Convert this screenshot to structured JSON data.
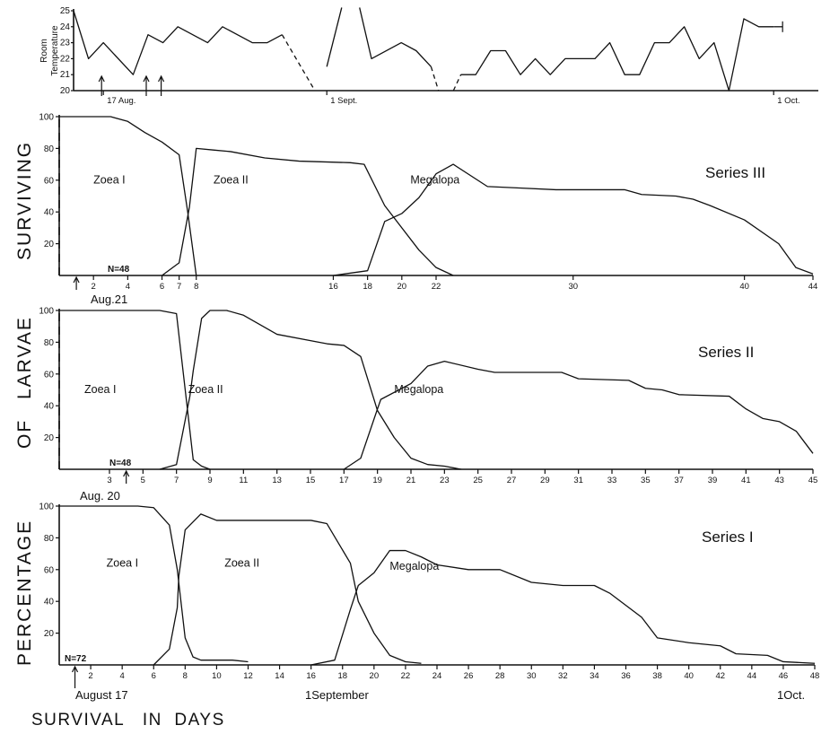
{
  "figure": {
    "ylabel_words": [
      "PERCENTAGE",
      "OF",
      "LARVAE",
      "SURVIVING"
    ],
    "xlabel": "SURVIVAL   IN  DAYS",
    "colors": {
      "ink": "#111111",
      "background": "#ffffff"
    }
  },
  "chart_data": [
    {
      "id": "temperature",
      "type": "line",
      "ylabel_lines": [
        "Room",
        "Temperature"
      ],
      "ylim": [
        20,
        25
      ],
      "yticks": [
        20,
        21,
        22,
        23,
        24,
        25
      ],
      "xlim": [
        15,
        65
      ],
      "date_labels": [
        {
          "text": "17 Aug.",
          "x": 17
        },
        {
          "text": "1 Sept.",
          "x": 32
        },
        {
          "text": "1 Oct.",
          "x": 62
        }
      ],
      "arrows_x": [
        17,
        20,
        21
      ],
      "solid_segments": [
        [
          [
            15,
            25
          ],
          [
            16,
            22
          ],
          [
            17,
            23
          ],
          [
            19,
            21
          ],
          [
            20,
            23.5
          ],
          [
            21,
            23
          ],
          [
            22,
            24
          ],
          [
            24,
            23
          ],
          [
            25,
            24
          ],
          [
            27,
            23
          ],
          [
            28,
            23
          ],
          [
            29,
            23.5
          ]
        ],
        [
          [
            32,
            21.5
          ],
          [
            33,
            25.2
          ]
        ],
        [
          [
            34.2,
            25.2
          ],
          [
            35,
            22
          ],
          [
            37,
            23
          ],
          [
            38,
            22.5
          ],
          [
            39,
            21.5
          ]
        ],
        [
          [
            41,
            21
          ],
          [
            42,
            21
          ],
          [
            43,
            22.5
          ],
          [
            44,
            22.5
          ],
          [
            45,
            21
          ],
          [
            46,
            22
          ],
          [
            47,
            21
          ],
          [
            48,
            22
          ],
          [
            50,
            22
          ],
          [
            51,
            23
          ],
          [
            52,
            21
          ],
          [
            53,
            21
          ],
          [
            54,
            23
          ],
          [
            55,
            23
          ],
          [
            56,
            24
          ],
          [
            57,
            22
          ],
          [
            58,
            23
          ],
          [
            59,
            20
          ],
          [
            60,
            24.5
          ],
          [
            61,
            24
          ],
          [
            62,
            24
          ]
        ]
      ],
      "dashed_segments": [
        [
          [
            29,
            23.5
          ],
          [
            31.2,
            20
          ]
        ],
        [
          [
            39,
            21.5
          ],
          [
            39.5,
            20
          ]
        ],
        [
          [
            40.5,
            20
          ],
          [
            41,
            21
          ]
        ]
      ],
      "end_bar_x": 62.6,
      "end_bar_y": 24
    },
    {
      "id": "series-3",
      "type": "line",
      "title": "Series III",
      "start_label": "Aug.21",
      "n_label": "N=48",
      "xlim": [
        0,
        44
      ],
      "ylim": [
        0,
        100
      ],
      "yticks": [
        20,
        40,
        60,
        80,
        100
      ],
      "xticks": [
        2,
        4,
        6,
        7,
        8,
        16,
        18,
        20,
        22,
        30,
        40,
        44
      ],
      "arrow_x": 1,
      "dashed_start": {
        "x": 0,
        "y0": 0,
        "y1": 100
      },
      "stage_labels": [
        {
          "text": "Zoea I",
          "x": 2,
          "y": 58
        },
        {
          "text": "Zoea II",
          "x": 9,
          "y": 58
        },
        {
          "text": "Megalopa",
          "x": 20.5,
          "y": 58
        }
      ],
      "series": [
        {
          "stage": "Zoea I",
          "points": [
            [
              0,
              100
            ],
            [
              3,
              100
            ],
            [
              4,
              97
            ],
            [
              5,
              90
            ],
            [
              6,
              84
            ],
            [
              7,
              76
            ],
            [
              7.5,
              40
            ],
            [
              8,
              0
            ]
          ]
        },
        {
          "stage": "Zoea II",
          "points": [
            [
              6,
              0
            ],
            [
              7,
              8
            ],
            [
              7.6,
              43
            ],
            [
              8,
              80
            ],
            [
              9,
              79
            ],
            [
              10,
              78
            ],
            [
              12,
              74
            ],
            [
              14,
              72
            ],
            [
              17,
              71
            ],
            [
              17.8,
              70
            ],
            [
              19,
              44
            ],
            [
              21,
              16
            ],
            [
              22,
              5
            ],
            [
              23,
              0
            ]
          ]
        },
        {
          "stage": "Megalopa",
          "points": [
            [
              16,
              0
            ],
            [
              18,
              3
            ],
            [
              19,
              34
            ],
            [
              20,
              39
            ],
            [
              21,
              49
            ],
            [
              22,
              64
            ],
            [
              23,
              70
            ],
            [
              25,
              56
            ],
            [
              27,
              55
            ],
            [
              29,
              54
            ],
            [
              33,
              54
            ],
            [
              34,
              51
            ],
            [
              36,
              50
            ],
            [
              37,
              48
            ],
            [
              38,
              44
            ],
            [
              40,
              35
            ],
            [
              42,
              20
            ],
            [
              43,
              5
            ],
            [
              44,
              1
            ]
          ]
        }
      ]
    },
    {
      "id": "series-2",
      "type": "line",
      "title": "Series II",
      "start_label": "Aug. 20",
      "n_label": "N=48",
      "xlim": [
        0,
        45
      ],
      "ylim": [
        0,
        100
      ],
      "yticks": [
        20,
        40,
        60,
        80,
        100
      ],
      "xticks": [
        3,
        5,
        7,
        9,
        11,
        13,
        15,
        17,
        19,
        21,
        23,
        25,
        27,
        29,
        31,
        33,
        35,
        37,
        39,
        41,
        43,
        45
      ],
      "arrow_x": 4,
      "dashed_start": {
        "x": 0,
        "y0": 0,
        "y1": 100
      },
      "stage_labels": [
        {
          "text": "Zoea I",
          "x": 1.5,
          "y": 48
        },
        {
          "text": "Zoea II",
          "x": 7.7,
          "y": 48
        },
        {
          "text": "Megalopa",
          "x": 20,
          "y": 48
        }
      ],
      "series": [
        {
          "stage": "Zoea I",
          "points": [
            [
              0,
              100
            ],
            [
              6,
              100
            ],
            [
              7,
              98
            ],
            [
              8,
              6
            ],
            [
              8.5,
              2
            ],
            [
              9,
              0
            ]
          ]
        },
        {
          "stage": "Zoea II",
          "points": [
            [
              6,
              0
            ],
            [
              7,
              3
            ],
            [
              7.8,
              46
            ],
            [
              8,
              62
            ],
            [
              8.5,
              95
            ],
            [
              9,
              100
            ],
            [
              10,
              100
            ],
            [
              11,
              97
            ],
            [
              12,
              91
            ],
            [
              13,
              85
            ],
            [
              15,
              81
            ],
            [
              16,
              79
            ],
            [
              17,
              78
            ],
            [
              18,
              71
            ],
            [
              19,
              37
            ],
            [
              20,
              20
            ],
            [
              21,
              7
            ],
            [
              22,
              3
            ],
            [
              23,
              2
            ],
            [
              24,
              0
            ]
          ]
        },
        {
          "stage": "Megalopa",
          "points": [
            [
              17,
              0
            ],
            [
              18,
              7
            ],
            [
              19,
              38
            ],
            [
              19.2,
              44
            ],
            [
              21,
              54
            ],
            [
              22,
              65
            ],
            [
              23,
              68
            ],
            [
              25,
              63
            ],
            [
              26,
              61
            ],
            [
              30,
              61
            ],
            [
              31,
              57
            ],
            [
              34,
              56
            ],
            [
              35,
              51
            ],
            [
              36,
              50
            ],
            [
              37,
              47
            ],
            [
              40,
              46
            ],
            [
              41,
              38
            ],
            [
              42,
              32
            ],
            [
              43,
              30
            ],
            [
              44,
              24
            ],
            [
              45,
              10
            ]
          ]
        }
      ]
    },
    {
      "id": "series-1",
      "type": "line",
      "title": "Series I",
      "start_label": "August 17",
      "end_label": "1Oct.",
      "mid_label": "1September",
      "n_label": "N=72",
      "xlim": [
        0,
        48
      ],
      "ylim": [
        0,
        100
      ],
      "yticks": [
        20,
        40,
        60,
        80,
        100
      ],
      "xticks": [
        2,
        4,
        6,
        8,
        10,
        12,
        14,
        16,
        18,
        20,
        22,
        24,
        26,
        28,
        30,
        32,
        34,
        36,
        38,
        40,
        42,
        44,
        46,
        48
      ],
      "arrow_x": 1,
      "stage_labels": [
        {
          "text": "Zoea I",
          "x": 3,
          "y": 62
        },
        {
          "text": "Zoea II",
          "x": 10.5,
          "y": 62
        },
        {
          "text": "Megalopa",
          "x": 21,
          "y": 60
        }
      ],
      "series": [
        {
          "stage": "Zoea I",
          "points": [
            [
              0,
              100
            ],
            [
              5,
              100
            ],
            [
              6,
              99
            ],
            [
              7,
              88
            ],
            [
              7.5,
              60
            ],
            [
              8,
              17
            ],
            [
              8.5,
              5
            ],
            [
              9,
              3
            ],
            [
              11,
              3
            ],
            [
              12,
              2
            ]
          ]
        },
        {
          "stage": "Zoea II",
          "points": [
            [
              6,
              0
            ],
            [
              7,
              10
            ],
            [
              7.5,
              36
            ],
            [
              7.6,
              56
            ],
            [
              8,
              85
            ],
            [
              9,
              95
            ],
            [
              10,
              91
            ],
            [
              12,
              91
            ],
            [
              16,
              91
            ],
            [
              17,
              89
            ],
            [
              18.5,
              64
            ],
            [
              19,
              40
            ],
            [
              20,
              20
            ],
            [
              21,
              6
            ],
            [
              22,
              2
            ],
            [
              23,
              1
            ]
          ]
        },
        {
          "stage": "Megalopa",
          "points": [
            [
              16,
              0
            ],
            [
              17.5,
              3
            ],
            [
              18.5,
              35
            ],
            [
              19,
              50
            ],
            [
              20,
              58
            ],
            [
              21,
              72
            ],
            [
              22,
              72
            ],
            [
              23,
              68
            ],
            [
              24,
              63
            ],
            [
              26,
              60
            ],
            [
              28,
              60
            ],
            [
              30,
              52
            ],
            [
              32,
              50
            ],
            [
              34,
              50
            ],
            [
              35,
              45
            ],
            [
              37,
              30
            ],
            [
              38,
              17
            ],
            [
              40,
              14
            ],
            [
              42,
              12
            ],
            [
              43,
              7
            ],
            [
              45,
              6
            ],
            [
              46,
              2
            ],
            [
              48,
              1
            ]
          ]
        }
      ]
    }
  ]
}
